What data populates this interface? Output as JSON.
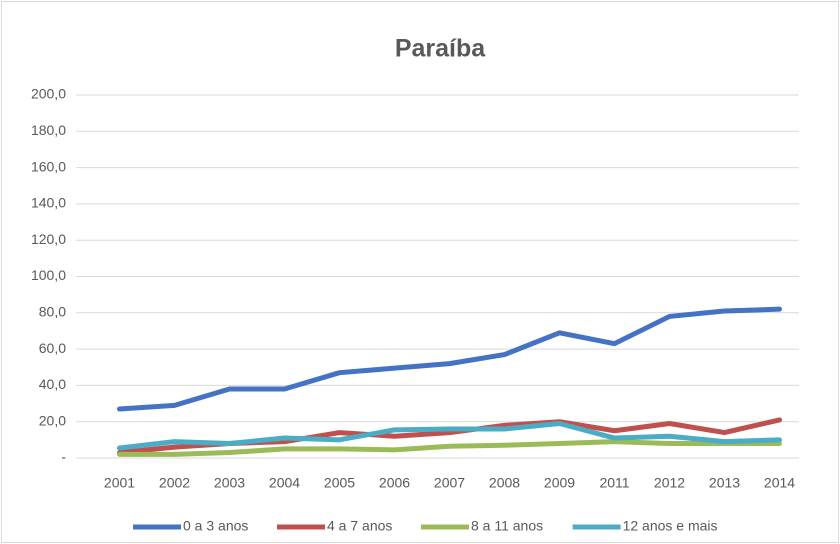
{
  "chart_data": {
    "type": "line",
    "title": "Paraíba",
    "categories": [
      "2001",
      "2002",
      "2003",
      "2004",
      "2005",
      "2006",
      "2007",
      "2008",
      "2009",
      "2011",
      "2012",
      "2013",
      "2014"
    ],
    "series": [
      {
        "name": "0 a 3 anos",
        "color": "#4472c4",
        "values": [
          27,
          29,
          38,
          38,
          47,
          49.5,
          52,
          57,
          69,
          63,
          78,
          81,
          82
        ]
      },
      {
        "name": "4 a 7 anos",
        "color": "#c0504d",
        "values": [
          3,
          6,
          8,
          9,
          14,
          12,
          14,
          18,
          20,
          15,
          19,
          14,
          21
        ]
      },
      {
        "name": "8 a 11 anos",
        "color": "#9bbb59",
        "values": [
          2,
          2,
          3,
          5,
          5,
          4.5,
          6.5,
          7,
          8,
          9,
          8,
          8,
          8
        ]
      },
      {
        "name": "12 anos e mais",
        "color": "#4bacc6",
        "values": [
          5.5,
          9,
          8,
          11,
          10,
          15.5,
          16,
          16,
          19,
          11,
          12,
          9,
          10
        ]
      }
    ],
    "ylim": [
      0,
      200
    ],
    "yticks": [
      {
        "value": 0,
        "label": "-"
      },
      {
        "value": 20,
        "label": "20,0"
      },
      {
        "value": 40,
        "label": "40,0"
      },
      {
        "value": 60,
        "label": "60,0"
      },
      {
        "value": 80,
        "label": "80,0"
      },
      {
        "value": 100,
        "label": "100,0"
      },
      {
        "value": 120,
        "label": "120,0"
      },
      {
        "value": 140,
        "label": "140,0"
      },
      {
        "value": 160,
        "label": "160,0"
      },
      {
        "value": 180,
        "label": "180,0"
      },
      {
        "value": 200,
        "label": "200,0"
      }
    ],
    "grid": true,
    "legend": "bottom"
  }
}
